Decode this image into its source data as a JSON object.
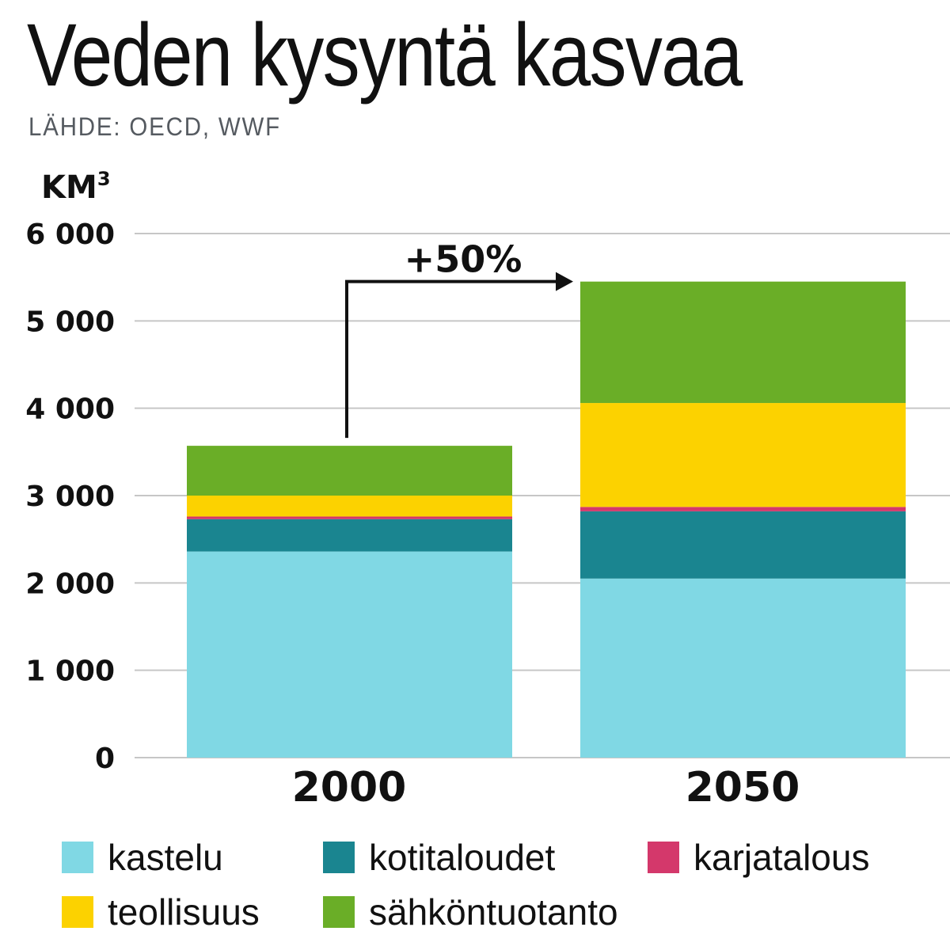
{
  "title": "Veden kysyntä kasvaa",
  "source": "LÄHDE: OECD, WWF",
  "chart_data": {
    "type": "bar",
    "stacked": true,
    "unit_label": "KM",
    "unit_superscript": "3",
    "categories": [
      "2000",
      "2050"
    ],
    "series": [
      {
        "name": "kastelu",
        "color": "#80d8e4",
        "values": [
          2360,
          2050
        ]
      },
      {
        "name": "kotitaloudet",
        "color": "#1a8590",
        "values": [
          370,
          770
        ]
      },
      {
        "name": "karjatalous",
        "color": "#d4386b",
        "values": [
          30,
          50
        ]
      },
      {
        "name": "teollisuus",
        "color": "#fcd200",
        "values": [
          240,
          1190
        ]
      },
      {
        "name": "sähköntuotanto",
        "color": "#6aae27",
        "values": [
          570,
          1390
        ]
      }
    ],
    "y_ticks": [
      0,
      1000,
      2000,
      3000,
      4000,
      5000,
      6000
    ],
    "y_tick_labels": [
      "0",
      "1 000",
      "2 000",
      "3 000",
      "4 000",
      "5 000",
      "6 000"
    ],
    "ylim": [
      0,
      6000
    ],
    "grid": true,
    "annotation": "+50%",
    "legend_position": "bottom"
  }
}
